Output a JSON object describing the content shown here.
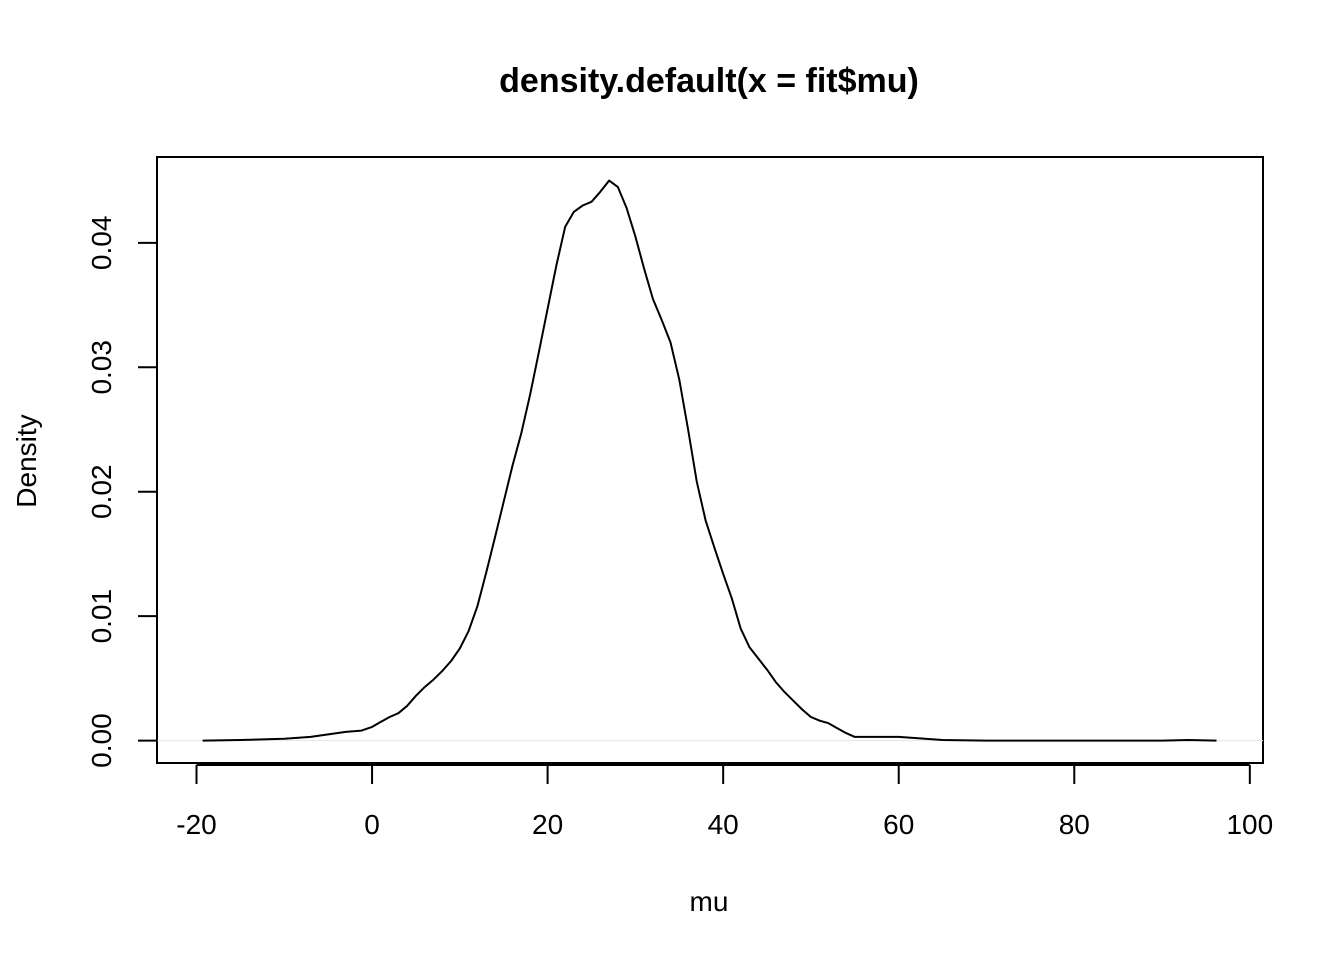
{
  "chart_data": {
    "type": "line",
    "title": "density.default(x = fit$mu)",
    "xlabel": "mu",
    "ylabel": "Density",
    "xlim": [
      -24.5,
      101.5
    ],
    "ylim": [
      -0.0018,
      0.0469
    ],
    "x_ticks": [
      -20,
      0,
      20,
      40,
      60,
      80,
      100
    ],
    "x_tick_labels": [
      "-20",
      "0",
      "20",
      "40",
      "60",
      "80",
      "100"
    ],
    "y_ticks": [
      0.0,
      0.01,
      0.02,
      0.03,
      0.04
    ],
    "y_tick_labels": [
      "0.00",
      "0.01",
      "0.02",
      "0.03",
      "0.04"
    ],
    "grid": false,
    "legend": "none",
    "baseline": 0,
    "line_color": "#000000",
    "baseline_color": "#e6e6e6",
    "series": [
      {
        "x": [
          -19.3,
          -15,
          -10,
          -7,
          -5,
          -3,
          -1.2,
          0,
          1,
          2,
          3,
          4,
          5,
          6,
          7,
          8,
          9,
          10,
          11,
          12,
          13,
          14,
          15,
          16,
          17,
          18,
          19,
          20,
          21,
          22,
          23,
          24,
          25,
          26,
          27,
          28,
          29,
          30,
          31,
          32,
          33,
          34,
          35,
          36,
          37,
          38,
          39,
          40,
          41,
          42,
          43,
          44,
          45,
          46,
          47,
          48,
          49,
          50,
          51,
          52,
          53,
          54,
          55,
          56,
          58,
          60,
          62,
          65,
          70,
          80,
          90,
          93,
          96.2
        ],
        "y": [
          0.0,
          5e-05,
          0.00015,
          0.0003,
          0.0005,
          0.0007,
          0.0008,
          0.0011,
          0.0015,
          0.0019,
          0.0022,
          0.0028,
          0.0036,
          0.0043,
          0.0049,
          0.0056,
          0.0064,
          0.0074,
          0.0088,
          0.0108,
          0.0135,
          0.0163,
          0.0192,
          0.0221,
          0.0247,
          0.0278,
          0.0312,
          0.0347,
          0.0382,
          0.0413,
          0.0425,
          0.043,
          0.0433,
          0.0441,
          0.045,
          0.0445,
          0.0428,
          0.0405,
          0.0379,
          0.0355,
          0.0338,
          0.032,
          0.029,
          0.025,
          0.0208,
          0.0177,
          0.0155,
          0.0134,
          0.0114,
          0.009,
          0.0075,
          0.0066,
          0.0057,
          0.0047,
          0.0039,
          0.0032,
          0.0025,
          0.0019,
          0.0016,
          0.0014,
          0.001,
          0.0006,
          0.0003,
          0.0003,
          0.0003,
          0.0003,
          0.0002,
          5e-05,
          0.0,
          0.0,
          0.0,
          5e-05,
          0.0
        ]
      }
    ]
  }
}
